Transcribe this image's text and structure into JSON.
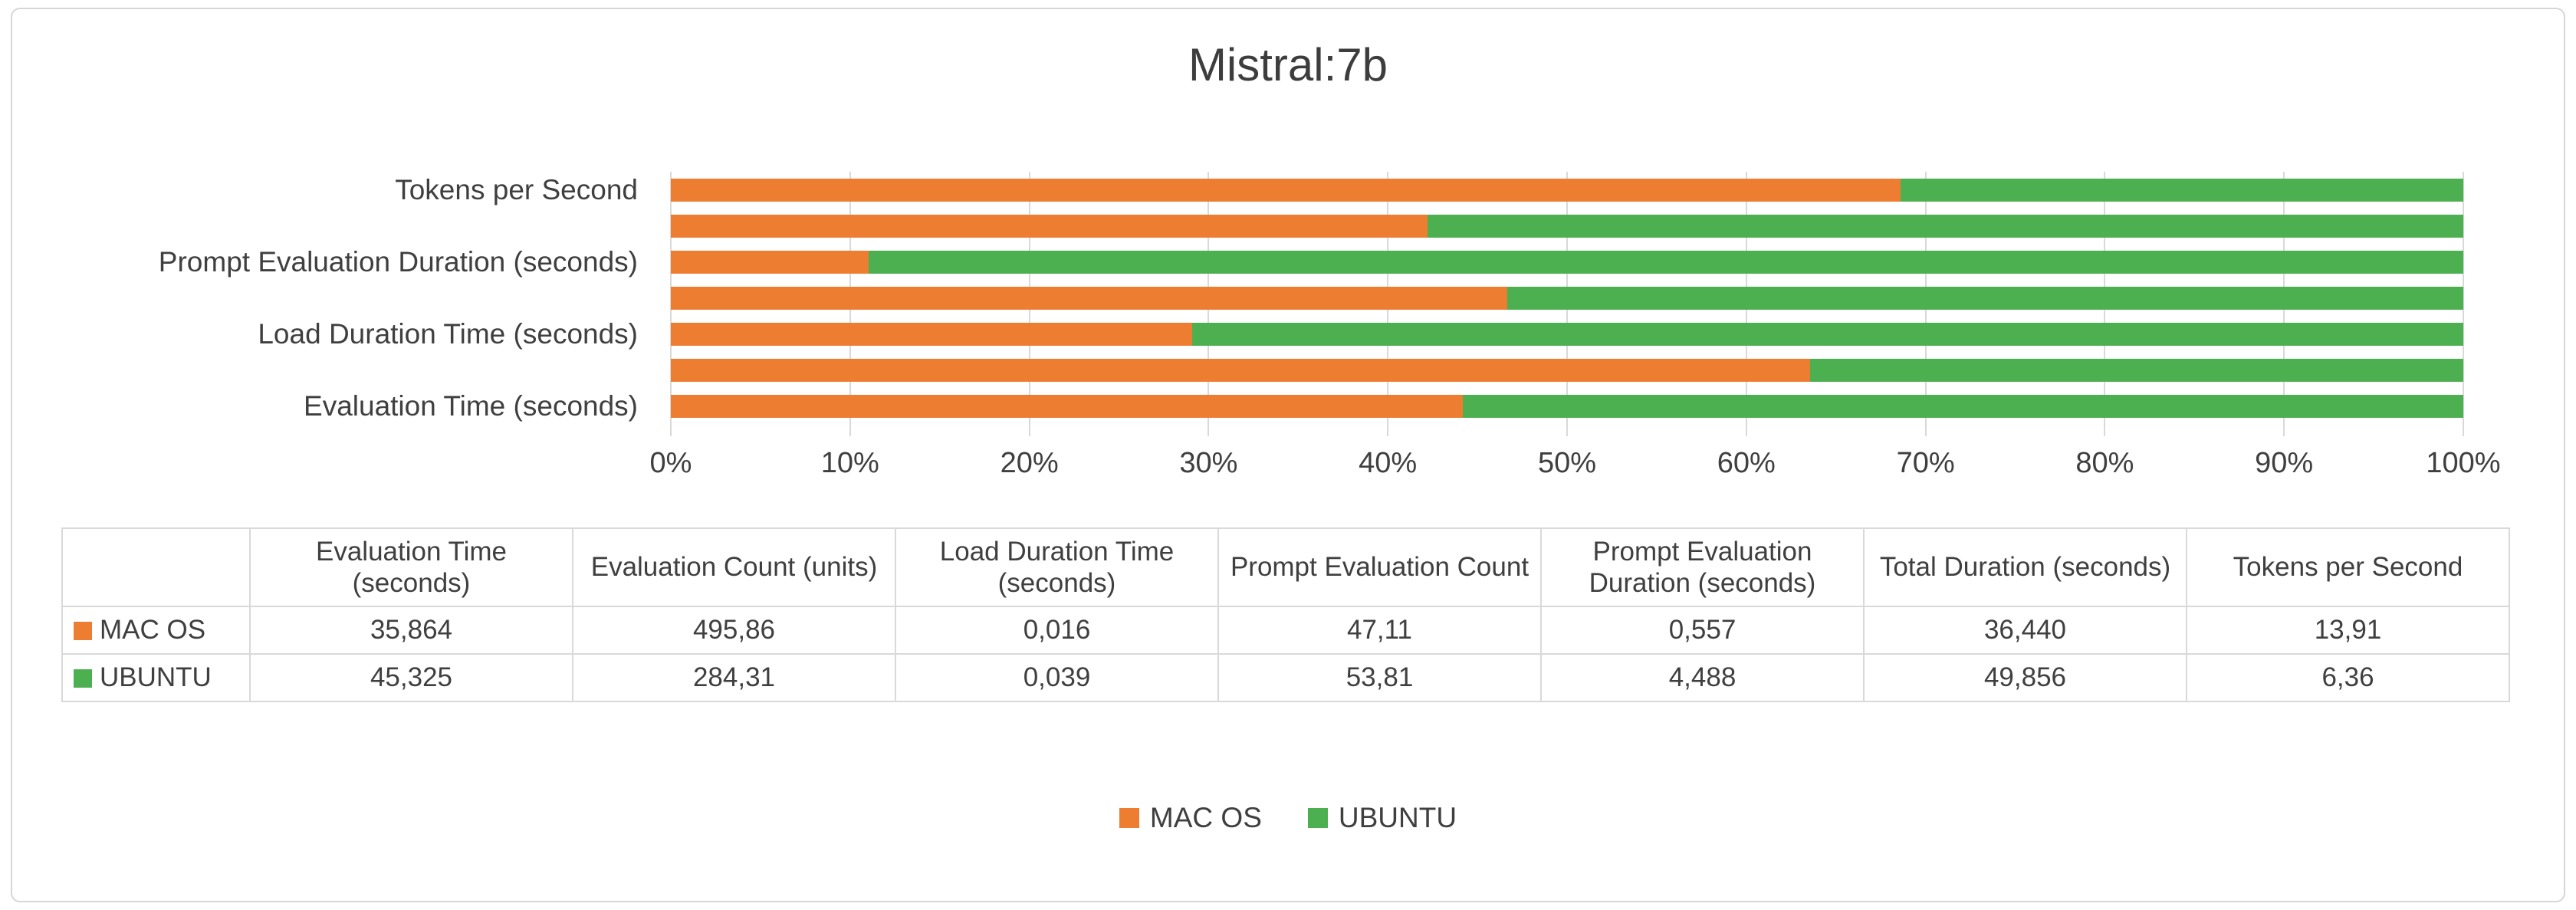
{
  "title": "Mistral:7b",
  "colors": {
    "mac_os": "#ED7D31",
    "ubuntu": "#4CAF50",
    "text": "#3F3F3F",
    "grid": "#D9D9D9"
  },
  "chart_data": {
    "type": "bar",
    "subtype": "horizontal-stacked-100pct",
    "title": "Mistral:7b",
    "categories": [
      "Tokens per Second",
      "Total Duration (seconds)",
      "Prompt Evaluation Duration (seconds)",
      "Prompt Evaluation Count",
      "Load Duration Time (seconds)",
      "Evaluation Count (units)",
      "Evaluation Time (seconds)"
    ],
    "visible_axis_labels": [
      "Tokens per Second",
      "Prompt Evaluation Duration (seconds)",
      "Load Duration Time (seconds)",
      "Evaluation Time (seconds)"
    ],
    "series": [
      {
        "name": "MAC OS",
        "color": "#ED7D31",
        "values": [
          13.91,
          36.44,
          0.557,
          47.11,
          0.016,
          495.86,
          35.864
        ]
      },
      {
        "name": "UBUNTU",
        "color": "#4CAF50",
        "values": [
          6.36,
          49.856,
          4.488,
          53.81,
          0.039,
          284.31,
          45.325
        ]
      }
    ],
    "mac_share_pct": [
      68.62,
      42.23,
      11.04,
      46.68,
      29.09,
      63.56,
      44.17
    ],
    "x_ticks": [
      "0%",
      "10%",
      "20%",
      "30%",
      "40%",
      "50%",
      "60%",
      "70%",
      "80%",
      "90%",
      "100%"
    ],
    "xlim": [
      0,
      100
    ],
    "grid": true,
    "legend_position": "bottom"
  },
  "table": {
    "columns": [
      "Evaluation Time (seconds)",
      "Evaluation Count (units)",
      "Load Duration Time (seconds)",
      "Prompt Evaluation Count",
      "Prompt Evaluation Duration (seconds)",
      "Total Duration (seconds)",
      "Tokens per Second"
    ],
    "rows": [
      {
        "name": "MAC OS",
        "values": [
          "35,864",
          "495,86",
          "0,016",
          "47,11",
          "0,557",
          "36,440",
          "13,91"
        ]
      },
      {
        "name": "UBUNTU",
        "values": [
          "45,325",
          "284,31",
          "0,039",
          "53,81",
          "4,488",
          "49,856",
          "6,36"
        ]
      }
    ]
  }
}
